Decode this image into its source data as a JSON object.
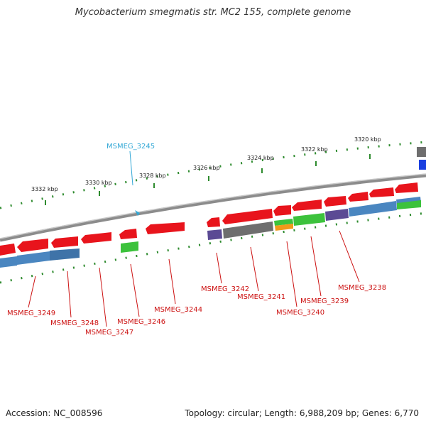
{
  "header": {
    "title": "Mycobacterium smegmatis str. MC2 155, complete genome"
  },
  "footer": {
    "accession": "Accession: NC_008596",
    "summary": "Topology: circular; Length: 6,988,209 bp; Genes: 6,770"
  },
  "ruler": {
    "ticks": [
      "3332 kbp",
      "3330 kbp",
      "3328 kbp",
      "3326 kbp",
      "3324 kbp",
      "3322 kbp",
      "3320 kbp"
    ]
  },
  "colors": {
    "gene_red": "#e8141c",
    "cds_blue": "#4a86c0",
    "gray": "#6e6e6e",
    "purple": "#5b4a94",
    "green": "#3cc23c",
    "orange": "#f09a1a",
    "label_red": "#cc1111",
    "label_cyan": "#33a8d6",
    "tick_green": "#2e8b2e",
    "backbone": "#8c8c8c"
  },
  "genes": [
    {
      "label": "MSMEG_3245",
      "color": "cyan"
    },
    {
      "label": "MSMEG_3249",
      "color": "red"
    },
    {
      "label": "MSMEG_3248",
      "color": "red"
    },
    {
      "label": "MSMEG_3247",
      "color": "red"
    },
    {
      "label": "MSMEG_3246",
      "color": "red"
    },
    {
      "label": "MSMEG_3244",
      "color": "red"
    },
    {
      "label": "MSMEG_3242",
      "color": "red"
    },
    {
      "label": "MSMEG_3241",
      "color": "red"
    },
    {
      "label": "MSMEG_3240",
      "color": "red"
    },
    {
      "label": "MSMEG_3239",
      "color": "red"
    },
    {
      "label": "MSMEG_3238",
      "color": "red"
    }
  ]
}
